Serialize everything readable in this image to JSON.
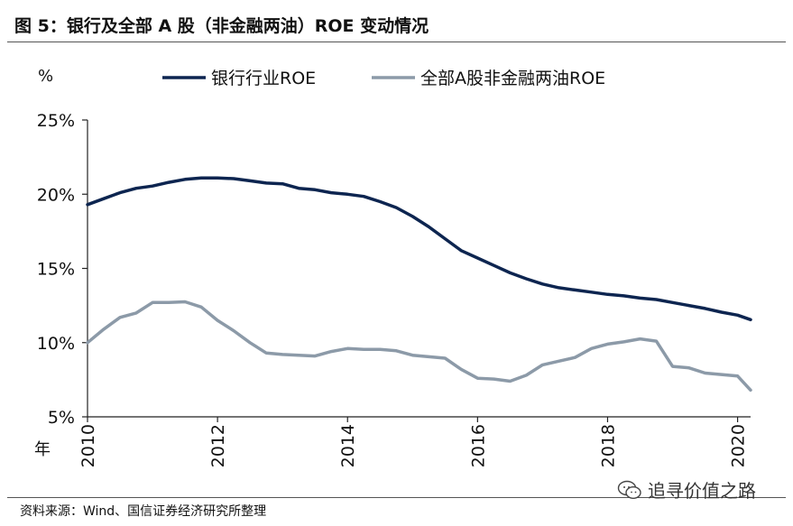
{
  "title": "图  5：银行及全部 A 股（非金融两油）ROE 变动情况",
  "source": "资料来源：Wind、国信证券经济研究所整理",
  "watermark": "追寻价值之路",
  "chart_data": {
    "type": "line",
    "y_unit": "%",
    "x_unit": "年",
    "ylim": [
      5,
      25
    ],
    "y_ticks": [
      5,
      10,
      15,
      20,
      25
    ],
    "y_tick_labels": [
      "5%",
      "10%",
      "15%",
      "20%",
      "25%"
    ],
    "xlim": [
      2010,
      2020.2
    ],
    "x_ticks": [
      2010,
      2012,
      2014,
      2016,
      2018,
      2020
    ],
    "x_tick_labels": [
      "2010",
      "2012",
      "2014",
      "2016",
      "2018",
      "2020"
    ],
    "grid": false,
    "legend_position": "top",
    "series": [
      {
        "name": "银行行业ROE",
        "color": "#0d2550",
        "points": [
          [
            2010.0,
            19.3
          ],
          [
            2010.25,
            19.7
          ],
          [
            2010.5,
            20.1
          ],
          [
            2010.75,
            20.4
          ],
          [
            2011.0,
            20.55
          ],
          [
            2011.25,
            20.8
          ],
          [
            2011.5,
            21.0
          ],
          [
            2011.75,
            21.1
          ],
          [
            2012.0,
            21.1
          ],
          [
            2012.25,
            21.05
          ],
          [
            2012.5,
            20.9
          ],
          [
            2012.75,
            20.75
          ],
          [
            2013.0,
            20.7
          ],
          [
            2013.25,
            20.4
          ],
          [
            2013.5,
            20.3
          ],
          [
            2013.75,
            20.1
          ],
          [
            2014.0,
            20.0
          ],
          [
            2014.25,
            19.85
          ],
          [
            2014.5,
            19.5
          ],
          [
            2014.75,
            19.1
          ],
          [
            2015.0,
            18.5
          ],
          [
            2015.25,
            17.8
          ],
          [
            2015.5,
            17.0
          ],
          [
            2015.75,
            16.2
          ],
          [
            2016.0,
            15.7
          ],
          [
            2016.25,
            15.2
          ],
          [
            2016.5,
            14.7
          ],
          [
            2016.75,
            14.3
          ],
          [
            2017.0,
            13.95
          ],
          [
            2017.25,
            13.7
          ],
          [
            2017.5,
            13.55
          ],
          [
            2017.75,
            13.4
          ],
          [
            2018.0,
            13.25
          ],
          [
            2018.25,
            13.15
          ],
          [
            2018.5,
            13.0
          ],
          [
            2018.75,
            12.9
          ],
          [
            2019.0,
            12.7
          ],
          [
            2019.25,
            12.5
          ],
          [
            2019.5,
            12.3
          ],
          [
            2019.75,
            12.05
          ],
          [
            2020.0,
            11.85
          ],
          [
            2020.2,
            11.55
          ]
        ]
      },
      {
        "name": "全部A股非金融两油ROE",
        "color": "#8c9aa8",
        "points": [
          [
            2010.0,
            10.0
          ],
          [
            2010.25,
            10.9
          ],
          [
            2010.5,
            11.7
          ],
          [
            2010.75,
            12.0
          ],
          [
            2011.0,
            12.7
          ],
          [
            2011.25,
            12.7
          ],
          [
            2011.5,
            12.75
          ],
          [
            2011.75,
            12.4
          ],
          [
            2012.0,
            11.5
          ],
          [
            2012.25,
            10.8
          ],
          [
            2012.5,
            10.0
          ],
          [
            2012.75,
            9.3
          ],
          [
            2013.0,
            9.2
          ],
          [
            2013.25,
            9.15
          ],
          [
            2013.5,
            9.1
          ],
          [
            2013.75,
            9.4
          ],
          [
            2014.0,
            9.6
          ],
          [
            2014.25,
            9.55
          ],
          [
            2014.5,
            9.55
          ],
          [
            2014.75,
            9.45
          ],
          [
            2015.0,
            9.15
          ],
          [
            2015.25,
            9.05
          ],
          [
            2015.5,
            8.95
          ],
          [
            2015.75,
            8.2
          ],
          [
            2016.0,
            7.6
          ],
          [
            2016.25,
            7.55
          ],
          [
            2016.5,
            7.4
          ],
          [
            2016.75,
            7.8
          ],
          [
            2017.0,
            8.5
          ],
          [
            2017.25,
            8.75
          ],
          [
            2017.5,
            9.0
          ],
          [
            2017.75,
            9.6
          ],
          [
            2018.0,
            9.9
          ],
          [
            2018.25,
            10.05
          ],
          [
            2018.5,
            10.25
          ],
          [
            2018.75,
            10.1
          ],
          [
            2019.0,
            8.4
          ],
          [
            2019.25,
            8.3
          ],
          [
            2019.5,
            7.95
          ],
          [
            2019.75,
            7.85
          ],
          [
            2020.0,
            7.75
          ],
          [
            2020.2,
            6.8
          ]
        ]
      }
    ]
  }
}
